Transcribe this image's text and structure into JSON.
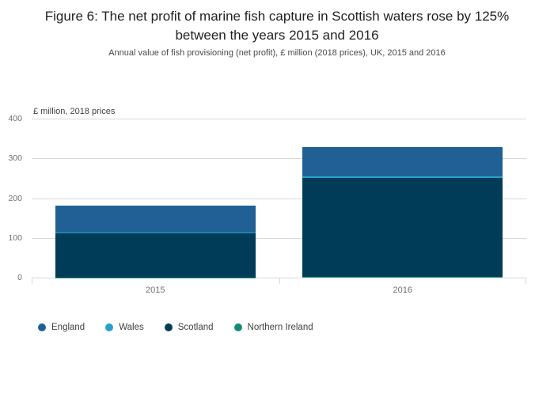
{
  "title": "Figure 6: The net profit of marine fish capture in Scottish waters rose by 125% between the years 2015 and 2016",
  "subtitle": "Annual value of fish provisioning (net profit), £ million (2018 prices), UK, 2015 and 2016",
  "chart_data": {
    "type": "bar",
    "stacked": true,
    "title": "Figure 6: The net profit of marine fish capture in Scottish waters rose by 125% between the years 2015 and 2016",
    "unit_label": "£ million, 2018 prices",
    "categories": [
      "2015",
      "2016"
    ],
    "series": [
      {
        "name": "England",
        "color": "#206095",
        "values": [
          67,
          74
        ]
      },
      {
        "name": "Wales",
        "color": "#27a0cc",
        "values": [
          3,
          4
        ]
      },
      {
        "name": "Scotland",
        "color": "#003c57",
        "values": [
          110,
          248
        ]
      },
      {
        "name": "Northern Ireland",
        "color": "#118c7b",
        "values": [
          1,
          2
        ]
      }
    ],
    "stack_order_bottom_to_top": [
      "Northern Ireland",
      "Scotland",
      "Wales",
      "England"
    ],
    "ylim": [
      0,
      400
    ],
    "yticks": [
      0,
      100,
      200,
      300,
      400
    ],
    "grid": true,
    "legend_position": "bottom",
    "gridline_color": "#d9d9d9"
  }
}
